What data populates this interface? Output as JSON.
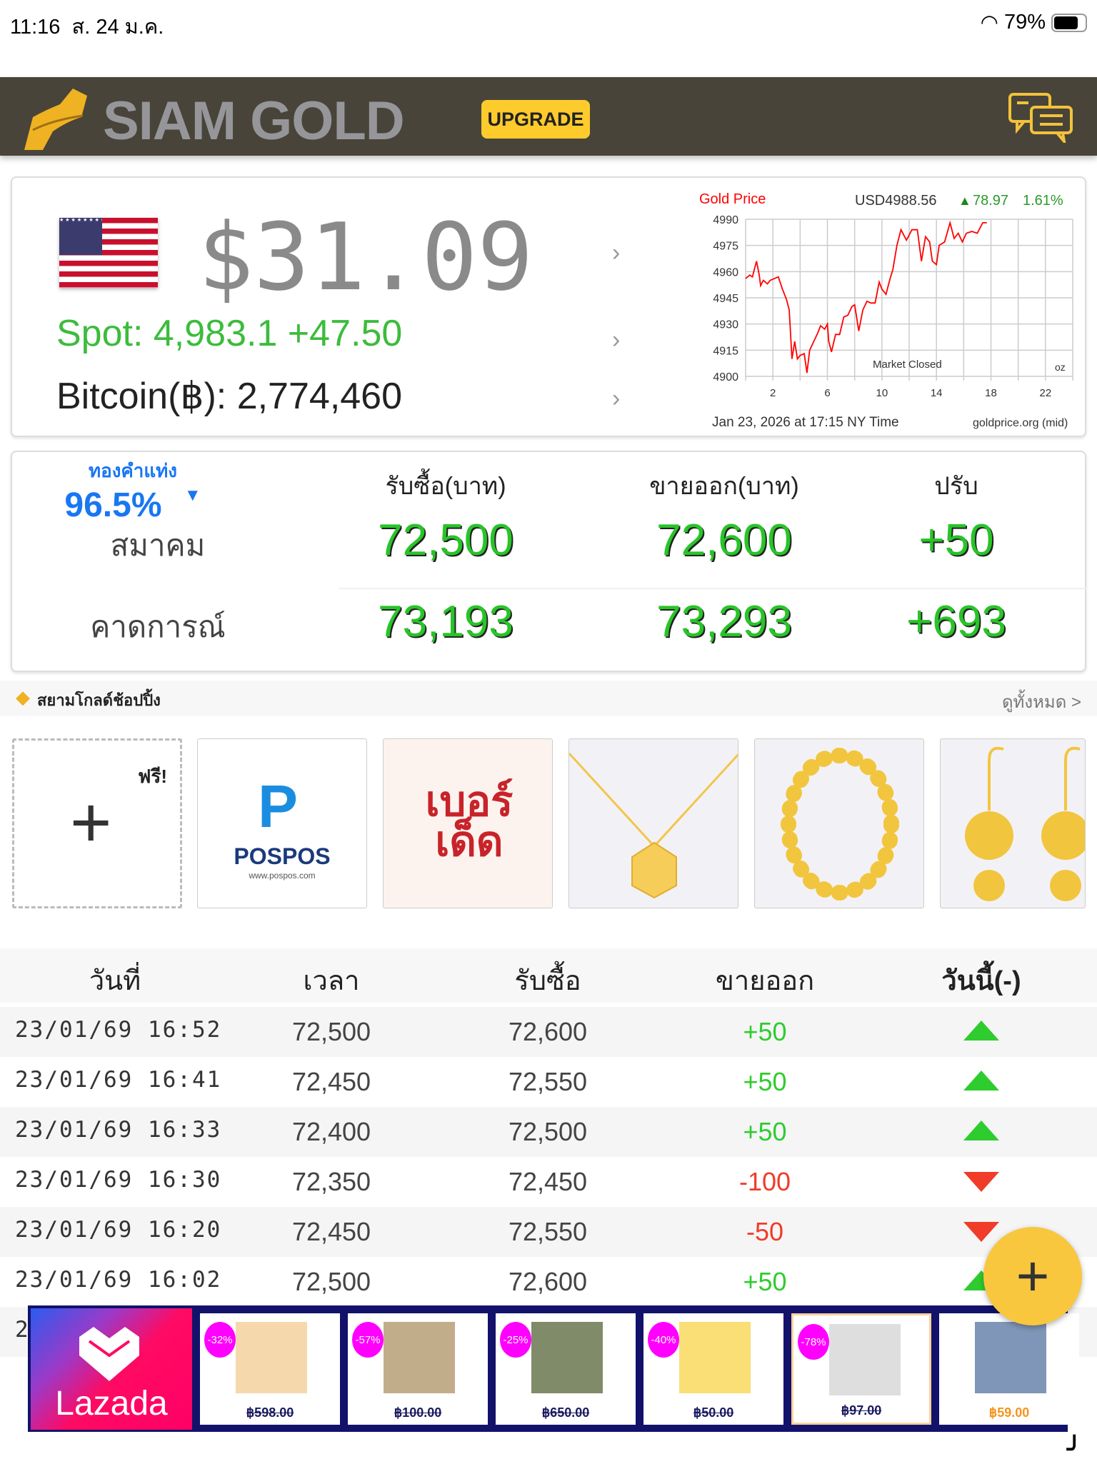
{
  "status_bar": {
    "time": "11:16",
    "date": "ส. 24 ม.ค.",
    "battery": "79%",
    "battery_level": 0.79
  },
  "header": {
    "brand": "SIAM GOLD",
    "upgrade_label": "UPGRADE"
  },
  "spot_card": {
    "digital_price": "$31.09",
    "spot": "Spot: 4,983.1  +47.50",
    "bitcoin": "Bitcoin(฿): 2,774,460"
  },
  "chart_data": {
    "type": "line",
    "title": "Gold Price",
    "price": "USD4988.56",
    "change": "78.97",
    "change_pct": "1.61%",
    "yticks": [
      4990,
      4975,
      4960,
      4945,
      4930,
      4915,
      4900
    ],
    "ylim": [
      4900,
      4990
    ],
    "xticks": [
      2,
      6,
      10,
      14,
      18,
      22
    ],
    "xlim": [
      0,
      24
    ],
    "annotation": "Market Closed",
    "unit": "oz",
    "footer_time": "Jan 23, 2026 at 17:15 NY Time",
    "source": "goldprice.org (mid)",
    "x": [
      0,
      0.3,
      0.5,
      0.8,
      1,
      1.1,
      1.3,
      1.6,
      1.8,
      2.4,
      2.7,
      3,
      3.2,
      3.4,
      3.6,
      3.8,
      4,
      4.3,
      4.5,
      4.7,
      5,
      5.3,
      5.5,
      5.8,
      6,
      6.1,
      6.3,
      6.6,
      6.9,
      7.2,
      7.5,
      7.8,
      8,
      8.3,
      8.6,
      8.9,
      9.2,
      9.5,
      9.8,
      10,
      10.3,
      10.6,
      10.8,
      11.1,
      11.4,
      11.8,
      12.2,
      12.6,
      12.9,
      13.2,
      13.5,
      13.7,
      14,
      14.2,
      14.6,
      15,
      15.3,
      15.6,
      15.9,
      16.2,
      16.6,
      17,
      17.4,
      17.7
    ],
    "y": [
      4956,
      4958,
      4957,
      4966,
      4958,
      4952,
      4955,
      4953,
      4955,
      4957,
      4950,
      4944,
      4938,
      4910,
      4920,
      4910,
      4912,
      4913,
      4902,
      4915,
      4920,
      4925,
      4929,
      4927,
      4930,
      4920,
      4914,
      4924,
      4924,
      4934,
      4935,
      4940,
      4941,
      4926,
      4938,
      4943,
      4942,
      4942,
      4954,
      4950,
      4947,
      4956,
      4961,
      4975,
      4984,
      4978,
      4984,
      4984,
      4966,
      4980,
      4977,
      4966,
      4964,
      4975,
      4977,
      4988,
      4979,
      4982,
      4977,
      4982,
      4983,
      4982,
      4988,
      4988
    ],
    "line_color": "#ff0000"
  },
  "price_card": {
    "gold_type": "ทองคำแท่ง",
    "purity": "96.5%",
    "col_buy": "รับซื้อ(บาท)",
    "col_sell": "ขายออก(บาท)",
    "col_change": "ปรับ",
    "rows": [
      {
        "label": "สมาคม",
        "buy": "72,500",
        "sell": "72,600",
        "change": "+50"
      },
      {
        "label": "คาดการณ์",
        "buy": "73,193",
        "sell": "73,293",
        "change": "+693"
      }
    ]
  },
  "shopping": {
    "title": "สยามโกลด์ช้อปปิ้ง",
    "see_all": "ดูทั้งหมด >",
    "free": "ฟรี!",
    "pospos": "POSPOS",
    "pospos_url": "www.pospos.com",
    "berded": "เบอร์เด็ด"
  },
  "history": {
    "headers": [
      "วันที่",
      "เวลา",
      "รับซื้อ",
      "ขายออก",
      "วันนี้(-)"
    ],
    "rows": [
      {
        "datetime": "23/01/69 16:52",
        "buy": "72,500",
        "sell": "72,600",
        "change": "+50",
        "dir": "up"
      },
      {
        "datetime": "23/01/69 16:41",
        "buy": "72,450",
        "sell": "72,550",
        "change": "+50",
        "dir": "up"
      },
      {
        "datetime": "23/01/69 16:33",
        "buy": "72,400",
        "sell": "72,500",
        "change": "+50",
        "dir": "up"
      },
      {
        "datetime": "23/01/69 16:30",
        "buy": "72,350",
        "sell": "72,450",
        "change": "-100",
        "dir": "down"
      },
      {
        "datetime": "23/01/69 16:20",
        "buy": "72,450",
        "sell": "72,550",
        "change": "-50",
        "dir": "down"
      },
      {
        "datetime": "23/01/69 16:02",
        "buy": "72,500",
        "sell": "72,600",
        "change": "+50",
        "dir": "up"
      }
    ],
    "partial_row": "2"
  },
  "fab": {
    "label": "+"
  },
  "lazada": {
    "brand": "Lazada",
    "products": [
      {
        "discount": "-32%",
        "price": "฿598.00"
      },
      {
        "discount": "-57%",
        "price": "฿100.00"
      },
      {
        "discount": "-25%",
        "price": "฿650.00"
      },
      {
        "discount": "-40%",
        "price": "฿50.00"
      },
      {
        "discount": "-78%",
        "price": "฿97.00"
      },
      {
        "discount": "",
        "price": "฿59.00"
      }
    ]
  },
  "colors": {
    "header_bg": "#48443a",
    "accent_gold": "#fdcb2c",
    "up_green": "#2ecc2e",
    "down_red": "#f03c28",
    "lazada_navy": "#12126b"
  }
}
